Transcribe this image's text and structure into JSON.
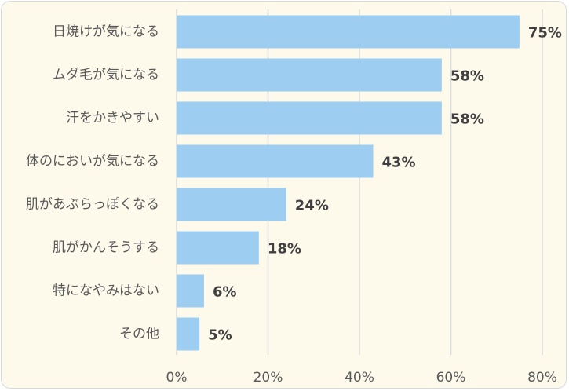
{
  "chart_data": {
    "type": "bar",
    "orientation": "horizontal",
    "categories": [
      "日焼けが気になる",
      "ムダ毛が気になる",
      "汗をかきやすい",
      "体のにおいが気になる",
      "肌があぶらっぽくなる",
      "肌がかんそうする",
      "特になやみはない",
      "その他"
    ],
    "values": [
      75,
      58,
      58,
      43,
      24,
      18,
      6,
      5
    ],
    "data_labels": [
      "75%",
      "58%",
      "58%",
      "43%",
      "24%",
      "18%",
      "6%",
      "5%"
    ],
    "xlim": [
      0,
      80
    ],
    "x_ticks": [
      0,
      20,
      40,
      60,
      80
    ],
    "x_tick_labels": [
      "0%",
      "20%",
      "40%",
      "60%",
      "80%"
    ],
    "grid": true,
    "bar_color": "#9dcdf0",
    "background_color": "#fdfaec"
  }
}
